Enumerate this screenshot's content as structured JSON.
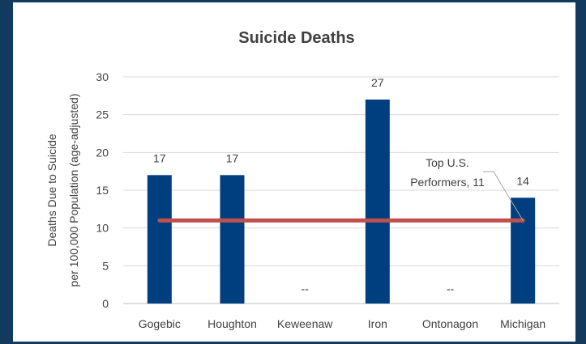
{
  "chart_data": {
    "type": "bar",
    "title": "Suicide Deaths",
    "ylabel_line1": "Deaths Due to Suicide",
    "ylabel_line2": "per 100,000 Population (age-adjusted)",
    "xlabel": "",
    "categories": [
      "Gogebic",
      "Houghton",
      "Keweenaw",
      "Iron",
      "Ontonagon",
      "Michigan"
    ],
    "values": [
      17,
      17,
      null,
      27,
      null,
      14
    ],
    "data_labels": [
      "17",
      "17",
      "--",
      "27",
      "--",
      "14"
    ],
    "ylim": [
      0,
      30
    ],
    "yticks": [
      0,
      5,
      10,
      15,
      20,
      25,
      30
    ],
    "grid": true,
    "legend": "none",
    "bar_color": "#003f7f",
    "reference_line": {
      "value": 11,
      "label_line1": "Top U.S.",
      "label_line2": "Performers, 11",
      "color": "#c0504d"
    },
    "frame_color": "#123a5e"
  }
}
